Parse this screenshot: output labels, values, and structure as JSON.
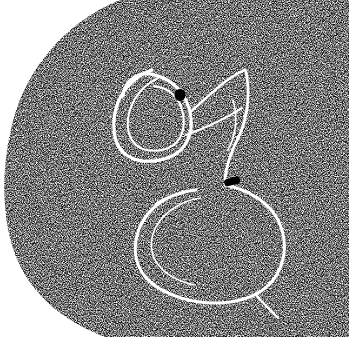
{
  "image": {
    "kind": "stippled micrograph",
    "description_free": true,
    "colors": {
      "background": "#ffffff",
      "stipple": "#000000",
      "tube": "#ffffff",
      "marker": "#000000"
    }
  }
}
